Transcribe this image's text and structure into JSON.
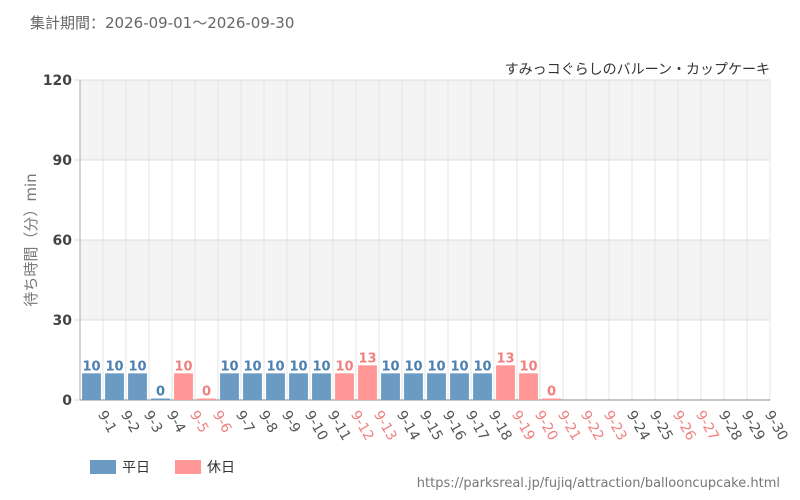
{
  "period": {
    "label": "集計期間：",
    "range": "2026-09-01～2026-09-30"
  },
  "url": "https://parksreal.jp/fujiq/attraction/ballooncupcake.html",
  "colors": {
    "weekday": "#6b9bc3",
    "holiday": "#ff9797",
    "weekday_text": "#4a7fb0",
    "holiday_text": "#f08080",
    "axis_text": "#555555",
    "band": "#f4f4f4",
    "grid": "#dddddd"
  },
  "chart_data": {
    "type": "bar",
    "title": "すみっコぐらしのバルーン・カップケーキ",
    "ylabel": "待ち時間（分）min",
    "ylim": [
      0,
      120
    ],
    "yticks": [
      0,
      30,
      60,
      90,
      120
    ],
    "categories": [
      "9-1",
      "9-2",
      "9-3",
      "9-4",
      "9-5",
      "9-6",
      "9-7",
      "9-8",
      "9-9",
      "9-10",
      "9-11",
      "9-12",
      "9-13",
      "9-14",
      "9-15",
      "9-16",
      "9-17",
      "9-18",
      "9-19",
      "9-20",
      "9-21",
      "9-22",
      "9-23",
      "9-24",
      "9-25",
      "9-26",
      "9-27",
      "9-28",
      "9-29",
      "9-30"
    ],
    "values": [
      10,
      10,
      10,
      0,
      10,
      0,
      10,
      10,
      10,
      10,
      10,
      10,
      13,
      10,
      10,
      10,
      10,
      10,
      13,
      10,
      0,
      null,
      null,
      null,
      null,
      null,
      null,
      null,
      null,
      null
    ],
    "day_type": [
      "平日",
      "平日",
      "平日",
      "平日",
      "休日",
      "休日",
      "平日",
      "平日",
      "平日",
      "平日",
      "平日",
      "休日",
      "休日",
      "平日",
      "平日",
      "平日",
      "平日",
      "平日",
      "休日",
      "休日",
      "休日",
      "休日",
      "休日",
      "平日",
      "平日",
      "休日",
      "休日",
      "平日",
      "平日",
      "平日"
    ],
    "legend": [
      {
        "key": "平日",
        "label": "平日"
      },
      {
        "key": "休日",
        "label": "休日"
      }
    ]
  }
}
